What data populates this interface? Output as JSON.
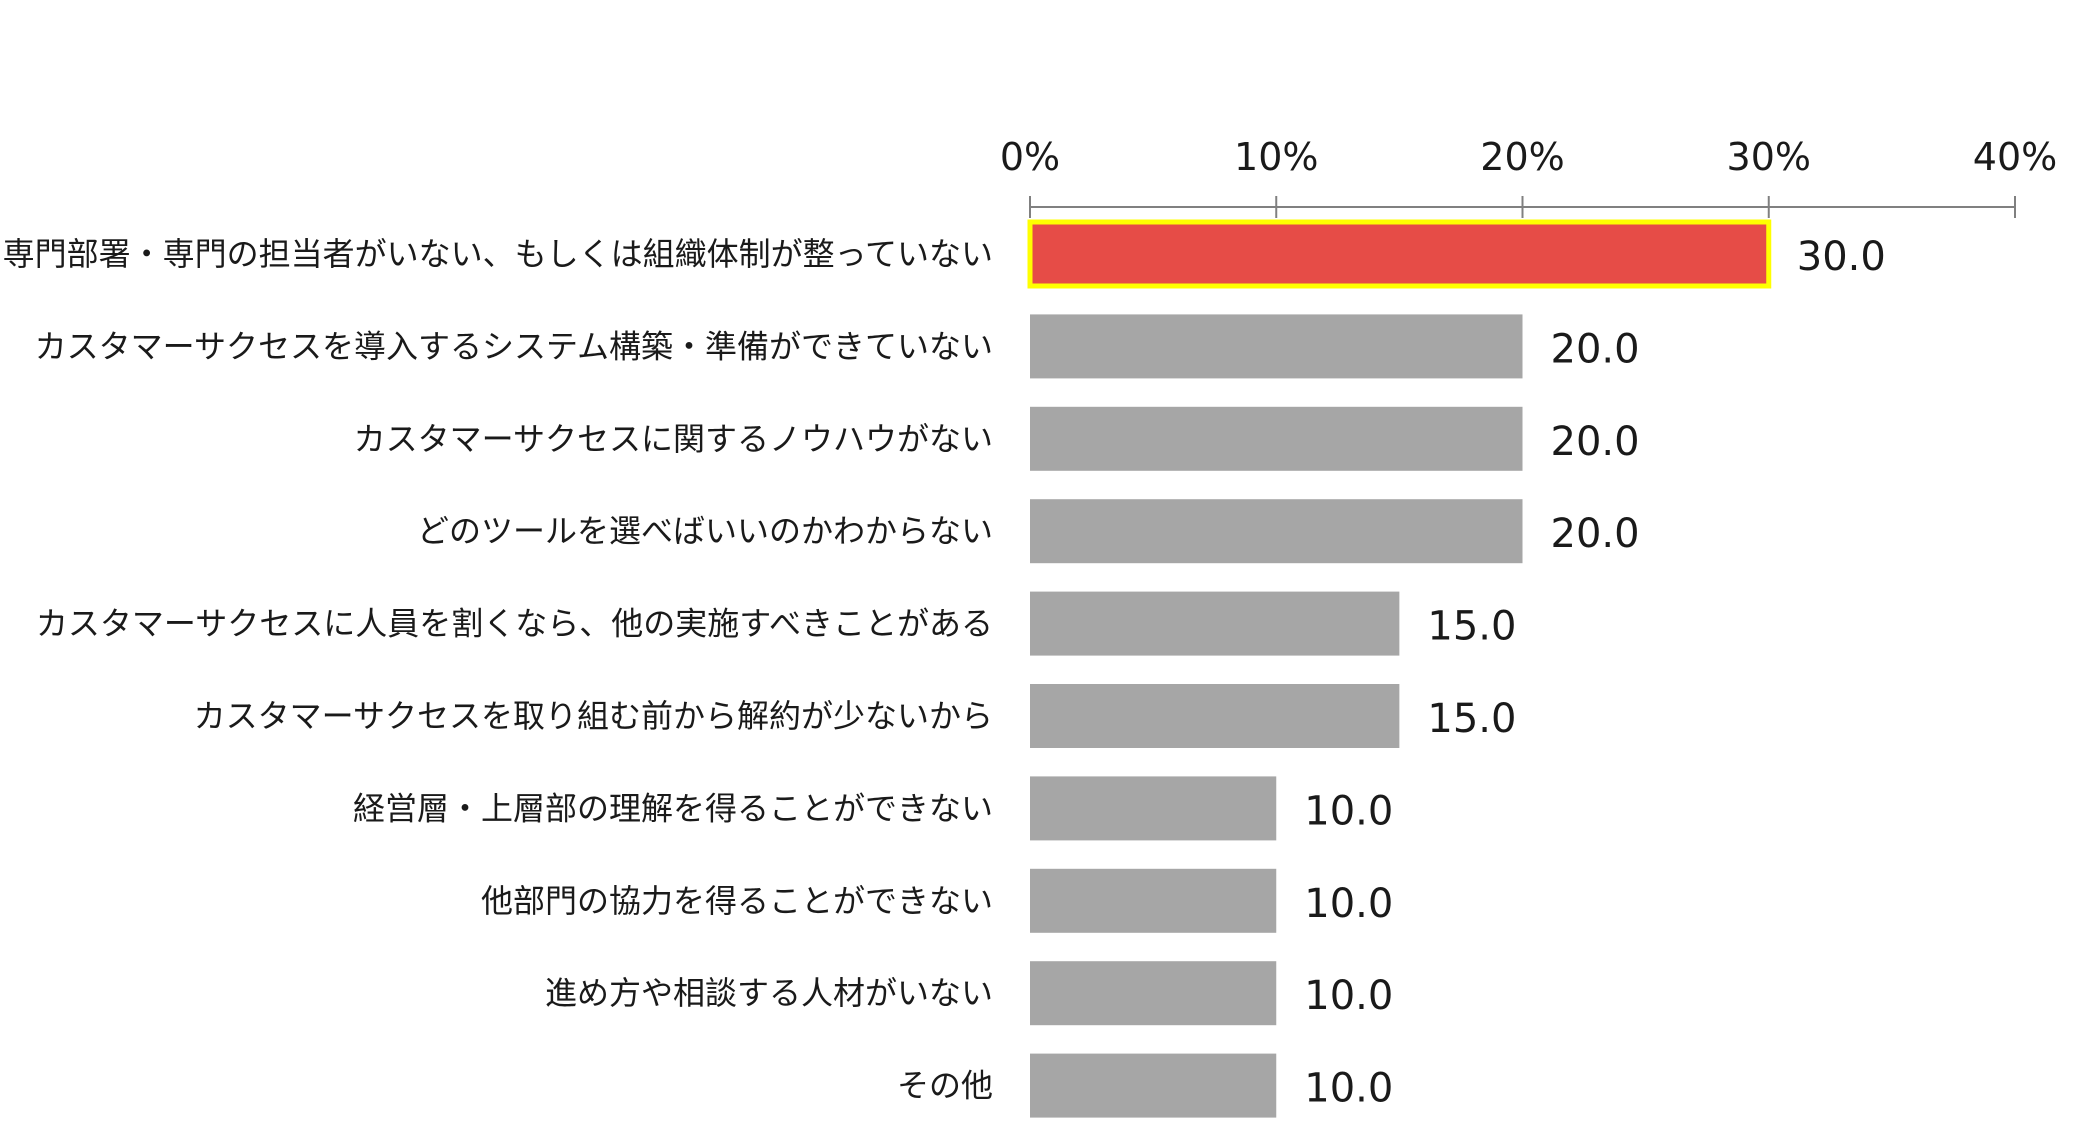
{
  "chart_data": {
    "type": "bar",
    "orientation": "horizontal",
    "title": "",
    "xlabel": "",
    "ylabel": "",
    "xlim": [
      0,
      40
    ],
    "ticks": [
      0,
      10,
      20,
      30,
      40
    ],
    "tick_labels": [
      "0%",
      "10%",
      "20%",
      "30%",
      "40%"
    ],
    "axis_position": "top",
    "grid": false,
    "legend": "none",
    "categories": [
      "専門部署・専門の担当者がいない、もしくは組織体制が整っていない",
      "カスタマーサクセスを導入するシステム構築・準備ができていない",
      "カスタマーサクセスに関するノウハウがない",
      "どのツールを選べばいいのかわからない",
      "カスタマーサクセスに人員を割くなら、他の実施すべきことがある",
      "カスタマーサクセスを取り組む前から解約が少ないから",
      "経営層・上層部の理解を得ることができない",
      "他部門の協力を得ることができない",
      "進め方や相談する人材がいない",
      "その他"
    ],
    "values": [
      30.0,
      20.0,
      20.0,
      20.0,
      15.0,
      15.0,
      10.0,
      10.0,
      10.0,
      10.0
    ],
    "value_labels": [
      "30.0",
      "20.0",
      "20.0",
      "20.0",
      "15.0",
      "15.0",
      "10.0",
      "10.0",
      "10.0",
      "10.0"
    ],
    "highlight_index": 0,
    "colors": {
      "bar": "#a6a6a6",
      "highlight_bar": "#e64c47",
      "highlight_border": "#ffff00",
      "axis": "#808080",
      "text": "#1a1a1a"
    }
  }
}
